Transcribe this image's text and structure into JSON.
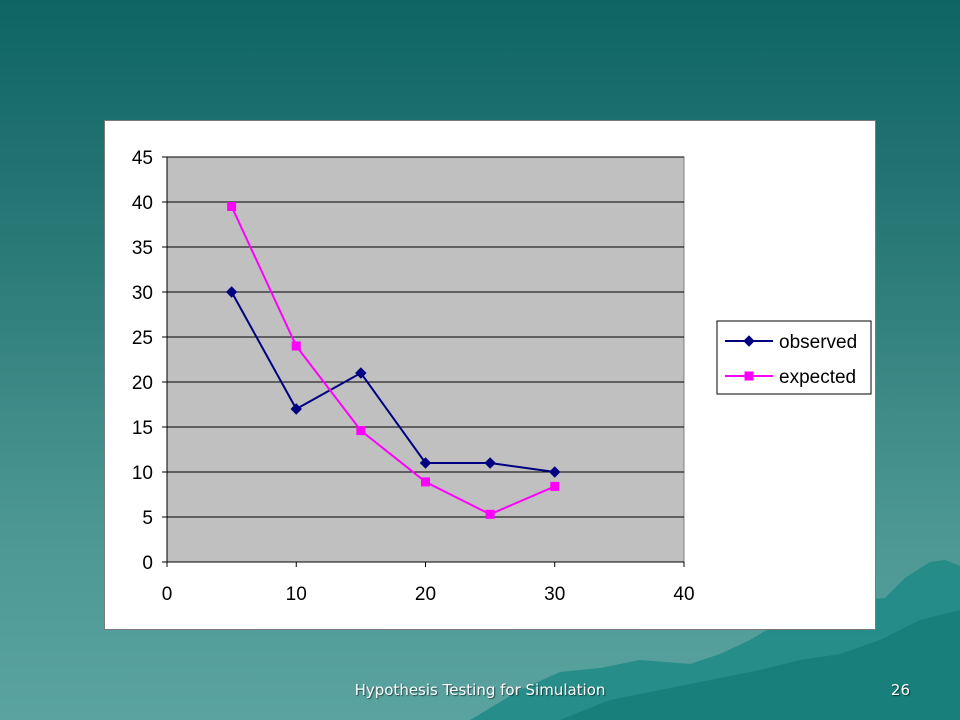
{
  "slide": {
    "footer_title": "Hypothesis Testing for Simulation",
    "page_number": "26"
  },
  "chart_data": {
    "type": "line",
    "x": [
      5,
      10,
      15,
      20,
      25,
      30
    ],
    "series": [
      {
        "name": "observed",
        "values": [
          30,
          17,
          21,
          11,
          11,
          10
        ],
        "color": "#000080",
        "marker": "diamond"
      },
      {
        "name": "expected",
        "values": [
          39.5,
          24,
          14.6,
          8.9,
          5.3,
          8.4
        ],
        "color": "#ff00ff",
        "marker": "square"
      }
    ],
    "xlim": [
      0,
      40
    ],
    "ylim": [
      0,
      45
    ],
    "x_ticks": [
      0,
      10,
      20,
      30,
      40
    ],
    "y_ticks": [
      0,
      5,
      10,
      15,
      20,
      25,
      30,
      35,
      40,
      45
    ],
    "title": "",
    "xlabel": "",
    "ylabel": "",
    "grid": "horizontal",
    "plot_background": "#c0c0c0",
    "legend_position": "right"
  }
}
